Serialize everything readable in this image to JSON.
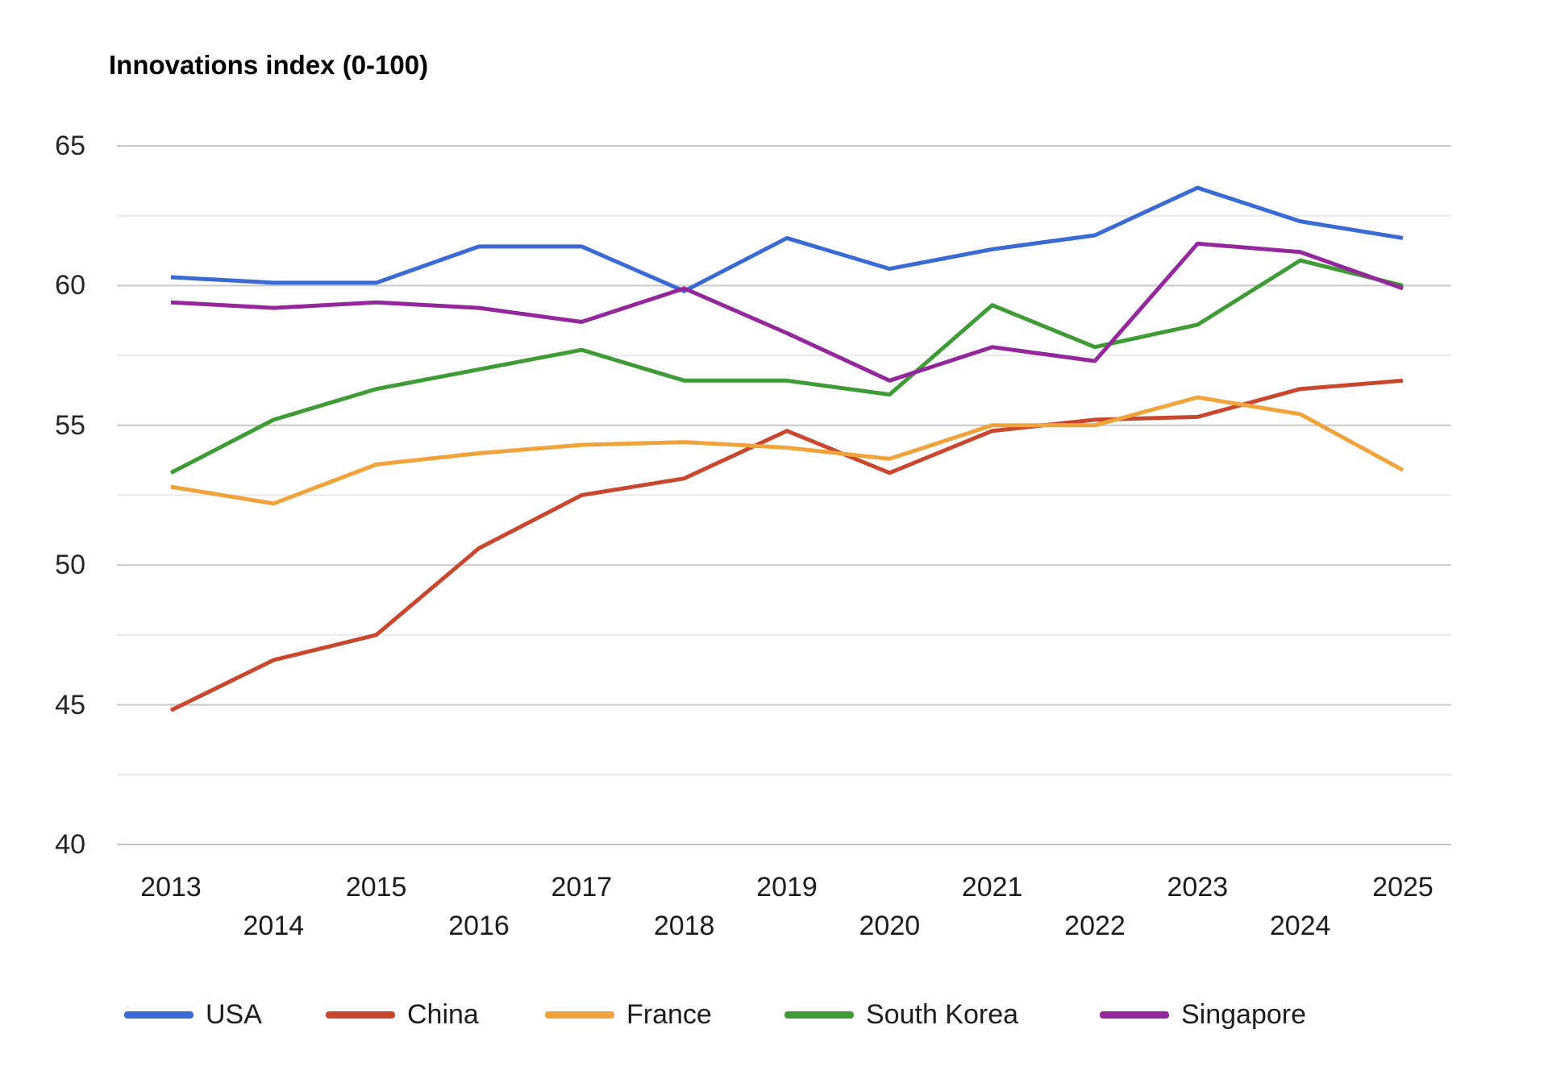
{
  "chart_data": {
    "type": "line",
    "title": "Innovations index (0-100)",
    "xlabel": "",
    "ylabel": "",
    "x": [
      2013,
      2014,
      2015,
      2016,
      2017,
      2018,
      2019,
      2020,
      2021,
      2022,
      2023,
      2024,
      2025
    ],
    "series": [
      {
        "name": "USA",
        "color": "#3A6AD4",
        "values": [
          60.3,
          60.1,
          60.1,
          61.4,
          61.4,
          59.8,
          61.7,
          60.6,
          61.3,
          61.8,
          63.5,
          62.3,
          61.7
        ]
      },
      {
        "name": "China",
        "color": "#C9472E",
        "values": [
          44.8,
          46.6,
          47.5,
          50.6,
          52.5,
          53.1,
          54.8,
          53.3,
          54.8,
          55.2,
          55.3,
          56.3,
          56.6
        ]
      },
      {
        "name": "France",
        "color": "#F0A23B",
        "values": [
          52.8,
          52.2,
          53.6,
          54.0,
          54.3,
          54.4,
          54.2,
          53.8,
          55.0,
          55.0,
          56.0,
          55.4,
          53.4
        ]
      },
      {
        "name": "South Korea",
        "color": "#3F9B35",
        "values": [
          53.3,
          55.2,
          56.3,
          57.0,
          57.7,
          56.6,
          56.6,
          56.1,
          59.3,
          57.8,
          58.6,
          60.9,
          60.0
        ]
      },
      {
        "name": "Singapore",
        "color": "#93279B",
        "values": [
          59.4,
          59.2,
          59.4,
          59.2,
          58.7,
          59.9,
          58.3,
          56.6,
          57.8,
          57.3,
          61.5,
          61.2,
          59.9
        ]
      }
    ],
    "ylim": [
      40,
      65
    ],
    "yticks": [
      65,
      60,
      55,
      50,
      45,
      40
    ],
    "minor_ytick_step": 2.5,
    "grid": true,
    "legend_position": "bottom"
  },
  "colors": {
    "background": "#ffffff",
    "grid_major": "#c8c8c8",
    "grid_minor": "#e9e9e9",
    "tick_text": "#262626",
    "title_text": "#000000"
  }
}
